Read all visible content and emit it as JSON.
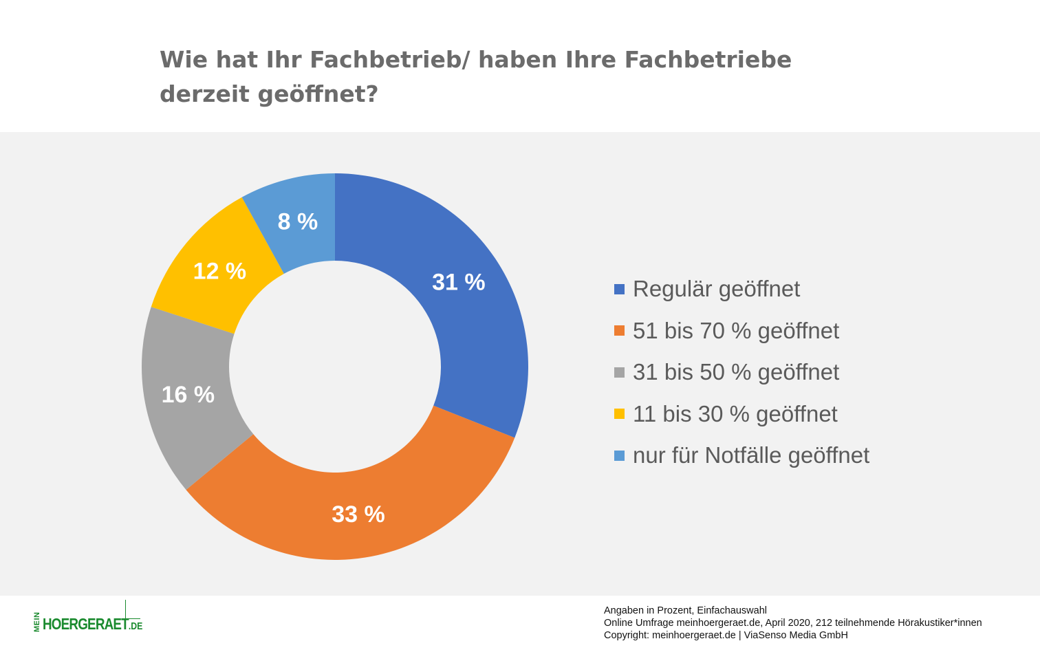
{
  "title": {
    "line1": "Wie hat Ihr Fachbetrieb/ haben Ihre Fachbetriebe",
    "line2": "derzeit geöffnet?"
  },
  "chart_data": {
    "type": "pie",
    "variant": "donut",
    "title": "Wie hat Ihr Fachbetrieb/ haben Ihre Fachbetriebe derzeit geöffnet?",
    "categories": [
      "Regulär geöffnet",
      "51 bis 70 % geöffnet",
      "31 bis 50 % geöffnet",
      "11 bis 30 % geöffnet",
      "nur für Notfälle geöffnet"
    ],
    "values": [
      31,
      33,
      16,
      12,
      8
    ],
    "data_labels": [
      "31 %",
      "33 %",
      "16 %",
      "12 %",
      "8 %"
    ],
    "colors": [
      "#4472c4",
      "#ed7d31",
      "#a5a5a5",
      "#ffc000",
      "#5b9bd5"
    ],
    "label_color": "#ffffff",
    "legend_position": "right",
    "unit": "%"
  },
  "footer": {
    "logo": {
      "prefix": "MEIN",
      "main": "HOERGERAET",
      "tld": ".DE",
      "color": "#1a8a2e"
    },
    "notes": [
      "Angaben in Prozent, Einfachauswahl",
      "Online Umfrage meinhoergeraet.de, April 2020, 212 teilnehmende Hörakustiker*innen",
      "Copyright: meinhoergeraet.de | ViaSenso Media GmbH"
    ]
  },
  "colors": {
    "panel_background": "#f2f2f2",
    "title_text": "#6b6b6b",
    "legend_text": "#5a5a5a"
  }
}
